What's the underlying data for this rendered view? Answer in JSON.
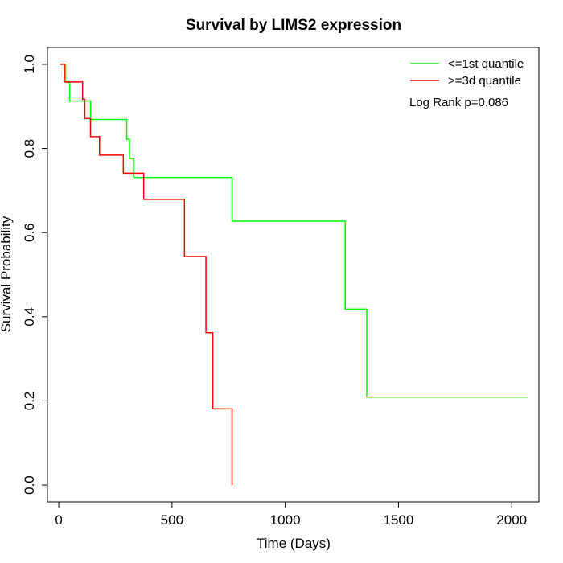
{
  "chart_data": {
    "type": "line",
    "title": "Survival by LIMS2 expression",
    "xlabel": "Time (Days)",
    "ylabel": "Survival Probability",
    "xlim": [
      -50,
      2120
    ],
    "ylim": [
      -0.04,
      1.04
    ],
    "x_ticks": [
      0,
      500,
      1000,
      1500,
      2000
    ],
    "y_ticks": [
      0.0,
      0.2,
      0.4,
      0.6,
      0.8,
      1.0
    ],
    "x_tick_labels": [
      "0",
      "500",
      "1000",
      "1500",
      "2000"
    ],
    "y_tick_labels": [
      "0.0",
      "0.2",
      "0.4",
      "0.6",
      "0.8",
      "1.0"
    ],
    "grid": false,
    "legend_position": "top-right",
    "annotation": "Log Rank p=0.086",
    "series": [
      {
        "name": "<=1st quantile",
        "color": "#00ff00",
        "step": true,
        "x": [
          5,
          30,
          48,
          130,
          140,
          280,
          300,
          312,
          330,
          765,
          1265,
          1360,
          2070
        ],
        "y": [
          1.0,
          0.957,
          0.913,
          0.913,
          0.869,
          0.869,
          0.822,
          0.776,
          0.731,
          0.627,
          0.418,
          0.209,
          0.209
        ]
      },
      {
        "name": ">=3d quantile",
        "color": "#ff0000",
        "step": true,
        "x": [
          5,
          25,
          105,
          115,
          140,
          180,
          285,
          375,
          555,
          650,
          680,
          765
        ],
        "y": [
          1.0,
          0.958,
          0.917,
          0.871,
          0.828,
          0.784,
          0.741,
          0.679,
          0.543,
          0.362,
          0.181,
          0.0
        ]
      }
    ]
  }
}
